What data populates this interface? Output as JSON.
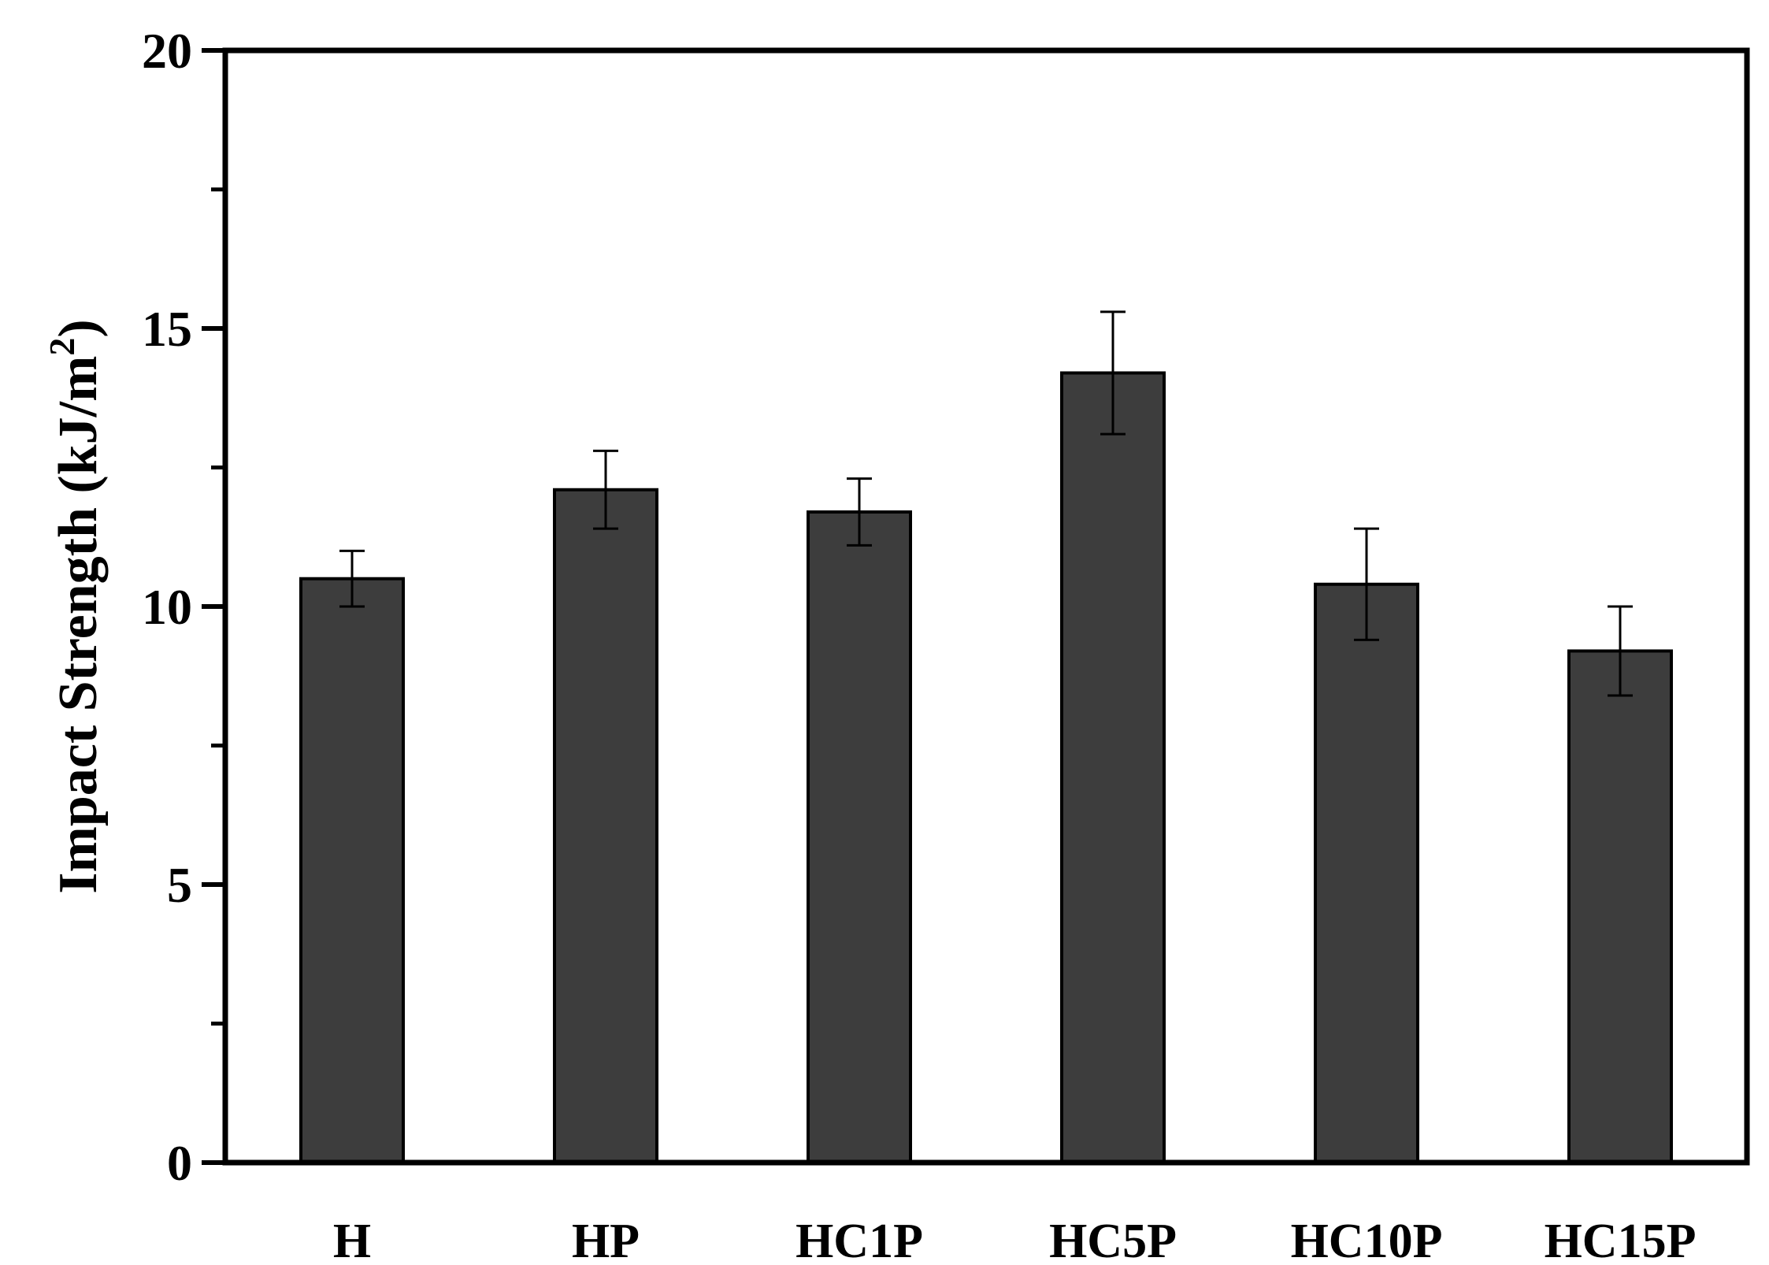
{
  "chart_data": {
    "type": "bar",
    "title": "",
    "xlabel": "",
    "ylabel": "Impact Strength (kJ/m",
    "ylabel_superscript": "2",
    "ylabel_close": ")",
    "categories": [
      "H",
      "HP",
      "HC1P",
      "HC5P",
      "HC10P",
      "HC15P"
    ],
    "series": [
      {
        "name": "Impact Strength",
        "values": [
          10.5,
          12.1,
          11.7,
          14.2,
          10.4,
          9.2
        ],
        "error": [
          0.5,
          0.7,
          0.6,
          1.1,
          1.0,
          0.8
        ]
      }
    ],
    "ylim": [
      0,
      20
    ],
    "yticks": [
      0,
      5,
      10,
      15,
      20
    ],
    "ytick_labels": [
      "0",
      "5",
      "10",
      "15",
      "20"
    ],
    "bar_color": "#3d3d3d",
    "grid": false
  }
}
